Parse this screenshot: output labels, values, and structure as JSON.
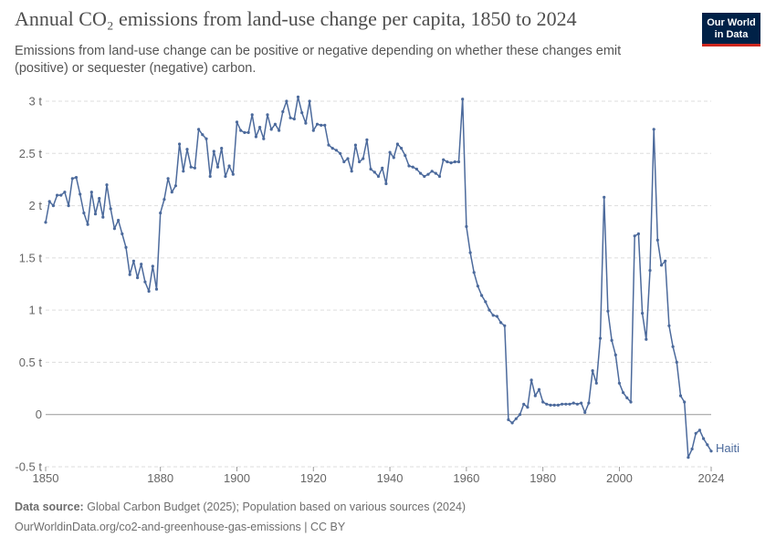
{
  "header": {
    "title": "Annual CO₂ emissions from land-use change per capita, 1850 to 2024",
    "subtitle": "Emissions from land-use change can be positive or negative depending on whether these changes emit (positive) or sequester (negative) carbon.",
    "logo_line1": "Our World",
    "logo_line2": "in Data"
  },
  "footer": {
    "source_label": "Data source:",
    "source_text": "Global Carbon Budget (2025); Population based on various sources (2024)",
    "url_text": "OurWorldinData.org/co2-and-greenhouse-gas-emissions | CC BY"
  },
  "colors": {
    "series": "#4c6a9c",
    "grid": "#dddddd",
    "zero_line": "#999999",
    "axis_text": "#666666",
    "logo_bg": "#002147",
    "logo_accent": "#ce261e"
  },
  "chart_data": {
    "type": "line",
    "title": "Annual CO₂ emissions from land-use change per capita, 1850 to 2024",
    "xlabel": "",
    "ylabel": "",
    "xlim": [
      1850,
      2024
    ],
    "ylim": [
      -0.5,
      3
    ],
    "x_ticks": [
      1850,
      1880,
      1900,
      1920,
      1940,
      1960,
      1980,
      2000,
      2024
    ],
    "y_ticks": [
      {
        "value": 3,
        "label": "3 t"
      },
      {
        "value": 2.5,
        "label": "2.5 t"
      },
      {
        "value": 2,
        "label": "2 t"
      },
      {
        "value": 1.5,
        "label": "1.5 t"
      },
      {
        "value": 1,
        "label": "1 t"
      },
      {
        "value": 0.5,
        "label": "0.5 t"
      },
      {
        "value": 0,
        "label": "0"
      },
      {
        "value": -0.5,
        "label": "-0.5 t"
      }
    ],
    "grid": "horizontal dashed",
    "legend": "end-of-line label",
    "series": [
      {
        "name": "Haiti",
        "x": [
          1850,
          1851,
          1852,
          1853,
          1854,
          1855,
          1856,
          1857,
          1858,
          1859,
          1860,
          1861,
          1862,
          1863,
          1864,
          1865,
          1866,
          1867,
          1868,
          1869,
          1870,
          1871,
          1872,
          1873,
          1874,
          1875,
          1876,
          1877,
          1878,
          1879,
          1880,
          1881,
          1882,
          1883,
          1884,
          1885,
          1886,
          1887,
          1888,
          1889,
          1890,
          1891,
          1892,
          1893,
          1894,
          1895,
          1896,
          1897,
          1898,
          1899,
          1900,
          1901,
          1902,
          1903,
          1904,
          1905,
          1906,
          1907,
          1908,
          1909,
          1910,
          1911,
          1912,
          1913,
          1914,
          1915,
          1916,
          1917,
          1918,
          1919,
          1920,
          1921,
          1922,
          1923,
          1924,
          1925,
          1926,
          1927,
          1928,
          1929,
          1930,
          1931,
          1932,
          1933,
          1934,
          1935,
          1936,
          1937,
          1938,
          1939,
          1940,
          1941,
          1942,
          1943,
          1944,
          1945,
          1946,
          1947,
          1948,
          1949,
          1950,
          1951,
          1952,
          1953,
          1954,
          1955,
          1956,
          1957,
          1958,
          1959,
          1960,
          1961,
          1962,
          1963,
          1964,
          1965,
          1966,
          1967,
          1968,
          1969,
          1970,
          1971,
          1972,
          1973,
          1974,
          1975,
          1976,
          1977,
          1978,
          1979,
          1980,
          1981,
          1982,
          1983,
          1984,
          1985,
          1986,
          1987,
          1988,
          1989,
          1990,
          1991,
          1992,
          1993,
          1994,
          1995,
          1996,
          1997,
          1998,
          1999,
          2000,
          2001,
          2002,
          2003,
          2004,
          2005,
          2006,
          2007,
          2008,
          2009,
          2010,
          2011,
          2012,
          2013,
          2014,
          2015,
          2016,
          2017,
          2018,
          2019,
          2020,
          2021,
          2022,
          2023,
          2024
        ],
        "values": [
          1.84,
          2.04,
          2.0,
          2.1,
          2.1,
          2.13,
          2.0,
          2.26,
          2.27,
          2.11,
          1.93,
          1.82,
          2.13,
          1.92,
          2.07,
          1.89,
          2.2,
          1.97,
          1.78,
          1.86,
          1.73,
          1.6,
          1.34,
          1.47,
          1.31,
          1.44,
          1.27,
          1.18,
          1.42,
          1.2,
          1.93,
          2.06,
          2.26,
          2.13,
          2.19,
          2.59,
          2.33,
          2.54,
          2.37,
          2.36,
          2.73,
          2.68,
          2.64,
          2.28,
          2.52,
          2.37,
          2.55,
          2.28,
          2.38,
          2.3,
          2.8,
          2.72,
          2.7,
          2.7,
          2.87,
          2.66,
          2.75,
          2.64,
          2.87,
          2.73,
          2.78,
          2.72,
          2.9,
          3.0,
          2.84,
          2.83,
          3.04,
          2.89,
          2.79,
          3.0,
          2.72,
          2.78,
          2.77,
          2.77,
          2.58,
          2.55,
          2.53,
          2.5,
          2.42,
          2.45,
          2.33,
          2.58,
          2.42,
          2.45,
          2.63,
          2.35,
          2.32,
          2.28,
          2.36,
          2.21,
          2.51,
          2.46,
          2.59,
          2.55,
          2.48,
          2.38,
          2.37,
          2.35,
          2.31,
          2.28,
          2.3,
          2.33,
          2.31,
          2.28,
          2.44,
          2.42,
          2.41,
          2.42,
          2.42,
          3.02,
          1.8,
          1.55,
          1.36,
          1.23,
          1.14,
          1.08,
          1.0,
          0.95,
          0.94,
          0.88,
          0.85,
          -0.05,
          -0.08,
          -0.04,
          0.0,
          0.1,
          0.07,
          0.33,
          0.18,
          0.24,
          0.12,
          0.1,
          0.09,
          0.09,
          0.09,
          0.1,
          0.1,
          0.1,
          0.11,
          0.1,
          0.11,
          0.02,
          0.11,
          0.42,
          0.3,
          0.73,
          2.08,
          0.99,
          0.71,
          0.57,
          0.3,
          0.21,
          0.16,
          0.12,
          1.71,
          1.73,
          0.97,
          0.72,
          1.38,
          2.73,
          1.67,
          1.43,
          1.47,
          0.85,
          0.65,
          0.5,
          0.18,
          0.12,
          -0.41,
          -0.33,
          -0.18,
          -0.15,
          -0.23,
          -0.29,
          -0.35
        ]
      }
    ]
  }
}
